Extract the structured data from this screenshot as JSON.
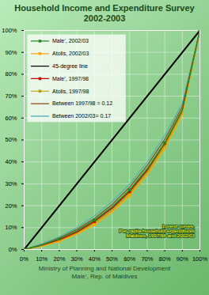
{
  "chart_data": {
    "type": "line",
    "title": "Household Income and Expenditure Survey\n2002-2003",
    "caption": "Ministry of Planning and National Development\nMale’, Rep. of Maldives",
    "annotations": [
      "Lorenz curves,\nPer capita household expenditures\nMaldives, 1997/98 and 2002/03"
    ],
    "x": [
      0.0,
      0.1,
      0.2,
      0.3,
      0.4,
      0.5,
      0.6,
      0.7,
      0.8,
      0.9,
      1.0
    ],
    "series": [
      {
        "name": "Male’, 2002/03",
        "color": "#228B22",
        "marker": "square",
        "values": [
          0.0,
          0.02,
          0.048,
          0.085,
          0.134,
          0.195,
          0.272,
          0.368,
          0.487,
          0.635,
          1.0
        ]
      },
      {
        "name": "Atolls, 2002/03",
        "color": "#ffa500",
        "marker": "square",
        "values": [
          0.0,
          0.015,
          0.038,
          0.07,
          0.113,
          0.17,
          0.245,
          0.34,
          0.462,
          0.615,
          1.0
        ]
      },
      {
        "name": "45-degree line",
        "color": "#000000",
        "x": [
          0,
          1
        ],
        "values": [
          0,
          1
        ]
      },
      {
        "name": "Male’, 1997/98",
        "color": "#cc0000",
        "marker": "square",
        "values": [
          0.0,
          0.018,
          0.044,
          0.08,
          0.128,
          0.188,
          0.265,
          0.362,
          0.484,
          0.636,
          1.0
        ]
      },
      {
        "name": "Atolls, 1997/98",
        "color": "#b8a000",
        "marker": "square",
        "values": [
          0.0,
          0.016,
          0.04,
          0.074,
          0.12,
          0.178,
          0.255,
          0.352,
          0.472,
          0.625,
          1.0
        ]
      },
      {
        "name": "Between 1997/98 = 0.12",
        "color": "#8B4513",
        "values": [
          0.0,
          0.022,
          0.052,
          0.092,
          0.142,
          0.205,
          0.285,
          0.383,
          0.503,
          0.652,
          1.0
        ]
      },
      {
        "name": "Between 2002/03= 0.17",
        "color": "#4aacb8",
        "values": [
          0.0,
          0.026,
          0.058,
          0.1,
          0.153,
          0.218,
          0.298,
          0.398,
          0.52,
          0.667,
          1.0
        ]
      }
    ],
    "xlim": [
      0,
      1
    ],
    "ylim": [
      0,
      1
    ],
    "xticks": [
      {
        "value": 0,
        "label": "0%"
      },
      {
        "value": 0.1,
        "label": "10%"
      },
      {
        "value": 0.2,
        "label": "20%"
      },
      {
        "value": 0.3,
        "label": "30%"
      },
      {
        "value": 0.4,
        "label": "40%"
      },
      {
        "value": 0.5,
        "label": "50%"
      },
      {
        "value": 0.6,
        "label": "60%"
      },
      {
        "value": 0.7,
        "label": "70%"
      },
      {
        "value": 0.8,
        "label": "80%"
      },
      {
        "value": 0.9,
        "label": "90%"
      },
      {
        "value": 1,
        "label": "100%"
      }
    ],
    "yticks": [
      {
        "value": 0,
        "label": "0%"
      },
      {
        "value": 0.1,
        "label": "10%"
      },
      {
        "value": 0.2,
        "label": "20%"
      },
      {
        "value": 0.3,
        "label": "30%"
      },
      {
        "value": 0.4,
        "label": "40%"
      },
      {
        "value": 0.5,
        "label": "50%"
      },
      {
        "value": 0.6,
        "label": "60%"
      },
      {
        "value": 0.7,
        "label": "70%"
      },
      {
        "value": 0.8,
        "label": "80%"
      },
      {
        "value": 0.9,
        "label": "90%"
      },
      {
        "value": 1,
        "label": "100%"
      }
    ],
    "grid": true,
    "legend": "upper left"
  }
}
